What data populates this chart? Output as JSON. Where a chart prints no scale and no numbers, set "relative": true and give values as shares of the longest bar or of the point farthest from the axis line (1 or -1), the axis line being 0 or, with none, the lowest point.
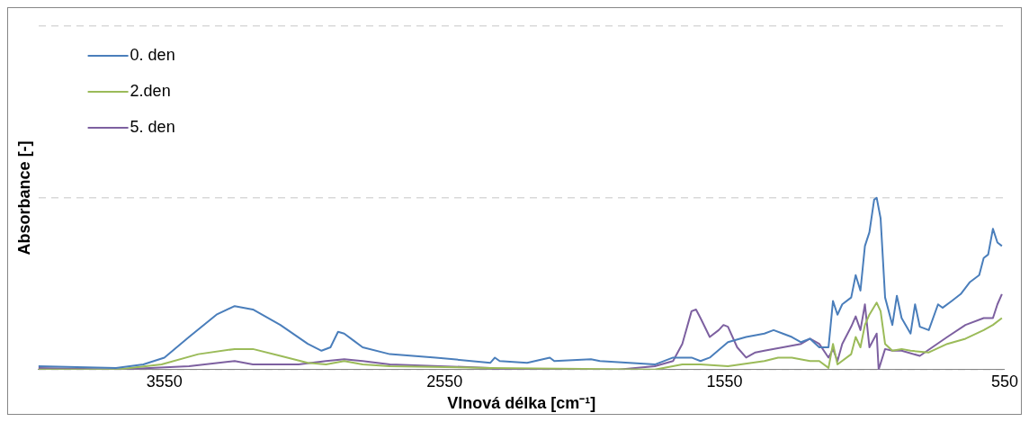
{
  "chart_data": {
    "type": "line",
    "xlabel": "Vlnová délka [cm⁻¹]",
    "ylabel": "Absorbance [-]",
    "relative": true,
    "xlim": [
      4000,
      550
    ],
    "xticks": [
      3550,
      2550,
      1550,
      550
    ],
    "grid": "y",
    "legend": "top left",
    "marker": "none",
    "line_style": "solid",
    "series": [
      {
        "name": "0. den",
        "color": "#4a7ebb",
        "x": [
          4000,
          3723,
          3625,
          3550,
          3462,
          3364,
          3299,
          3234,
          3136,
          3038,
          2989,
          2957,
          2930,
          2908,
          2875,
          2842,
          2745,
          2581,
          2386,
          2370,
          2353,
          2255,
          2174,
          2158,
          2027,
          1995,
          1799,
          1734,
          1668,
          1636,
          1603,
          1538,
          1473,
          1408,
          1375,
          1342,
          1310,
          1277,
          1245,
          1212,
          1179,
          1163,
          1147,
          1130,
          1098,
          1082,
          1065,
          1049,
          1033,
          1016,
          1007,
          993,
          977,
          951,
          935,
          918,
          886,
          870,
          853,
          821,
          788,
          772,
          739,
          707,
          674,
          641,
          625,
          609,
          592,
          576,
          560
        ],
        "values": [
          0.02,
          0.01,
          0.03,
          0.07,
          0.19,
          0.32,
          0.37,
          0.35,
          0.26,
          0.15,
          0.11,
          0.13,
          0.22,
          0.21,
          0.17,
          0.13,
          0.09,
          0.07,
          0.04,
          0.07,
          0.05,
          0.04,
          0.07,
          0.05,
          0.06,
          0.05,
          0.03,
          0.07,
          0.07,
          0.05,
          0.07,
          0.16,
          0.19,
          0.21,
          0.23,
          0.21,
          0.19,
          0.16,
          0.18,
          0.13,
          0.13,
          0.4,
          0.32,
          0.38,
          0.42,
          0.55,
          0.46,
          0.72,
          0.8,
          0.99,
          1,
          0.88,
          0.42,
          0.26,
          0.43,
          0.3,
          0.21,
          0.38,
          0.25,
          0.23,
          0.38,
          0.36,
          0.4,
          0.44,
          0.51,
          0.55,
          0.65,
          0.67,
          0.82,
          0.74,
          0.72
        ]
      },
      {
        "name": "2.den",
        "color": "#9bbb59",
        "x": [
          4000,
          3723,
          3560,
          3429,
          3299,
          3234,
          3136,
          3038,
          2973,
          2908,
          2842,
          2745,
          2386,
          1799,
          1701,
          1636,
          1538,
          1408,
          1359,
          1310,
          1245,
          1212,
          1179,
          1163,
          1147,
          1098,
          1082,
          1065,
          1049,
          1033,
          1007,
          993,
          977,
          951,
          918,
          886,
          821,
          755,
          690,
          625,
          592,
          560
        ],
        "values": [
          0,
          0,
          0.03,
          0.09,
          0.12,
          0.12,
          0.08,
          0.04,
          0.03,
          0.05,
          0.03,
          0.02,
          0.01,
          0,
          0.03,
          0.03,
          0.02,
          0.05,
          0.07,
          0.07,
          0.05,
          0.05,
          0.01,
          0.15,
          0.03,
          0.09,
          0.19,
          0.13,
          0.26,
          0.32,
          0.39,
          0.34,
          0.15,
          0.11,
          0.12,
          0.11,
          0.1,
          0.15,
          0.18,
          0.23,
          0.26,
          0.3
        ]
      },
      {
        "name": "5. den",
        "color": "#7d60a0",
        "x": [
          4000,
          3723,
          3462,
          3299,
          3234,
          3071,
          2973,
          2908,
          2842,
          2745,
          2386,
          2370,
          1929,
          1799,
          1734,
          1701,
          1668,
          1652,
          1636,
          1603,
          1571,
          1554,
          1538,
          1505,
          1473,
          1440,
          1408,
          1342,
          1277,
          1245,
          1212,
          1179,
          1163,
          1147,
          1130,
          1098,
          1082,
          1065,
          1049,
          1033,
          1007,
          1000,
          977,
          951,
          918,
          853,
          755,
          690,
          625,
          592,
          576,
          560
        ],
        "values": [
          0.01,
          0,
          0.02,
          0.05,
          0.03,
          0.03,
          0.05,
          0.06,
          0.05,
          0.03,
          0.01,
          0,
          0,
          0.02,
          0.05,
          0.15,
          0.34,
          0.35,
          0.3,
          0.19,
          0.23,
          0.26,
          0.25,
          0.13,
          0.07,
          0.1,
          0.11,
          0.13,
          0.15,
          0.18,
          0.15,
          0.07,
          0.12,
          0.05,
          0.15,
          0.25,
          0.31,
          0.23,
          0.38,
          0.13,
          0.21,
          0,
          0.12,
          0.11,
          0.11,
          0.08,
          0.19,
          0.26,
          0.3,
          0.3,
          0.38,
          0.44
        ]
      }
    ]
  }
}
